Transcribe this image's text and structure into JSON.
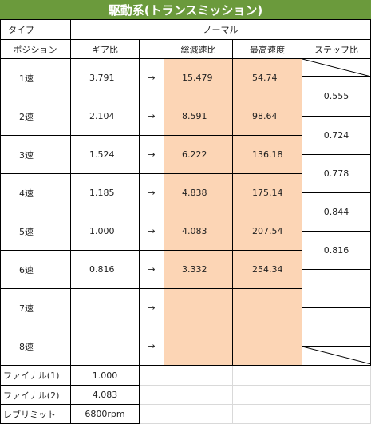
{
  "title": "駆動系(トランスミッション)",
  "header": {
    "type_label": "タイプ",
    "type_value": "ノーマル",
    "col_position": "ポジション",
    "col_gear_ratio": "ギア比",
    "col_total_ratio": "総減速比",
    "col_max_speed": "最高速度",
    "col_step_ratio": "ステップ比"
  },
  "arrow": "→",
  "gears": [
    {
      "position": "1速",
      "gear_ratio": "3.791",
      "total_ratio": "15.479",
      "max_speed": "54.74"
    },
    {
      "position": "2速",
      "gear_ratio": "2.104",
      "total_ratio": "8.591",
      "max_speed": "98.64"
    },
    {
      "position": "3速",
      "gear_ratio": "1.524",
      "total_ratio": "6.222",
      "max_speed": "136.18"
    },
    {
      "position": "4速",
      "gear_ratio": "1.185",
      "total_ratio": "4.838",
      "max_speed": "175.14"
    },
    {
      "position": "5速",
      "gear_ratio": "1.000",
      "total_ratio": "4.083",
      "max_speed": "207.54"
    },
    {
      "position": "6速",
      "gear_ratio": "0.816",
      "total_ratio": "3.332",
      "max_speed": "254.34"
    },
    {
      "position": "7速",
      "gear_ratio": "",
      "total_ratio": "",
      "max_speed": ""
    },
    {
      "position": "8速",
      "gear_ratio": "",
      "total_ratio": "",
      "max_speed": ""
    }
  ],
  "step_ratios": [
    "0.555",
    "0.724",
    "0.778",
    "0.844",
    "0.816",
    "",
    ""
  ],
  "footer": [
    {
      "label": "ファイナル(1)",
      "value": "1.000"
    },
    {
      "label": "ファイナル(2)",
      "value": "4.083"
    },
    {
      "label": "レブリミット",
      "value": "6800rpm"
    }
  ],
  "colors": {
    "title_bg": "#6b9a3c",
    "highlight": "#fcd5b5"
  }
}
